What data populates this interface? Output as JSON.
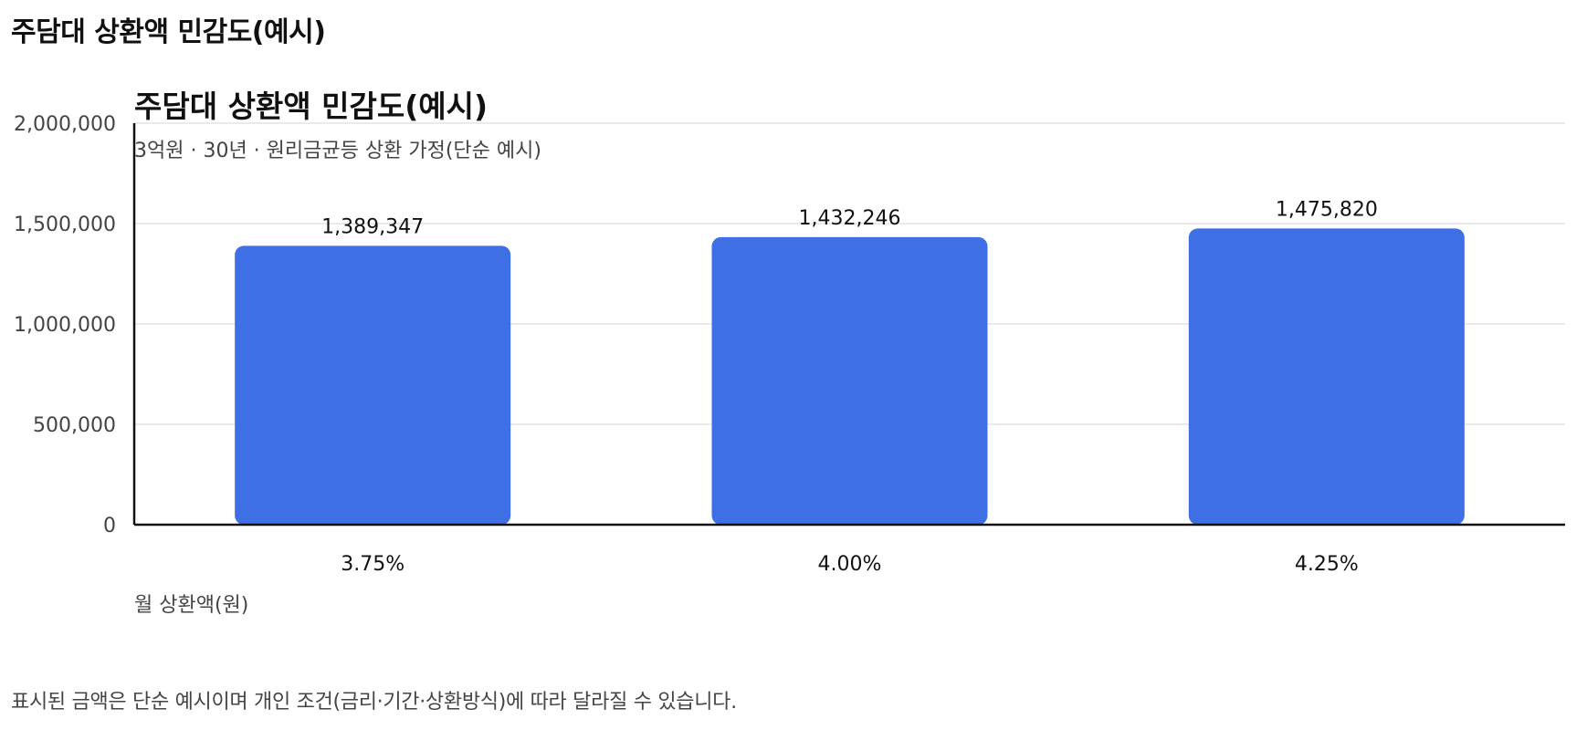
{
  "page": {
    "heading": "주담대 상환액 민감도(예시)",
    "footnote": "표시된 금액은 단순 예시이며 개인 조건(금리·기간·상환방식)에 따라 달라질 수 있습니다."
  },
  "colors": {
    "bar": "#3f6fe4",
    "grid": "#e3e3e3",
    "axis": "#111111",
    "text": "#111111",
    "muted": "#444444"
  },
  "chart_data": {
    "type": "bar",
    "title": "주담대 상환액 민감도(예시)",
    "subtitle": "3억원 · 30년 · 원리금균등 상환 가정(단순 예시)",
    "xlabel": "",
    "ylabel": "월 상환액(원)",
    "categories": [
      "3.75%",
      "4.00%",
      "4.25%"
    ],
    "values": [
      1389347,
      1432246,
      1475820
    ],
    "data_labels": [
      "1,389,347",
      "1,432,246",
      "1,475,820"
    ],
    "ylim": [
      0,
      2000000
    ],
    "y_ticks": [
      0,
      500000,
      1000000,
      1500000,
      2000000
    ],
    "y_tick_labels": [
      "0",
      "500,000",
      "1,000,000",
      "1,500,000",
      "2,000,000"
    ],
    "grid": true,
    "legend": "none"
  }
}
